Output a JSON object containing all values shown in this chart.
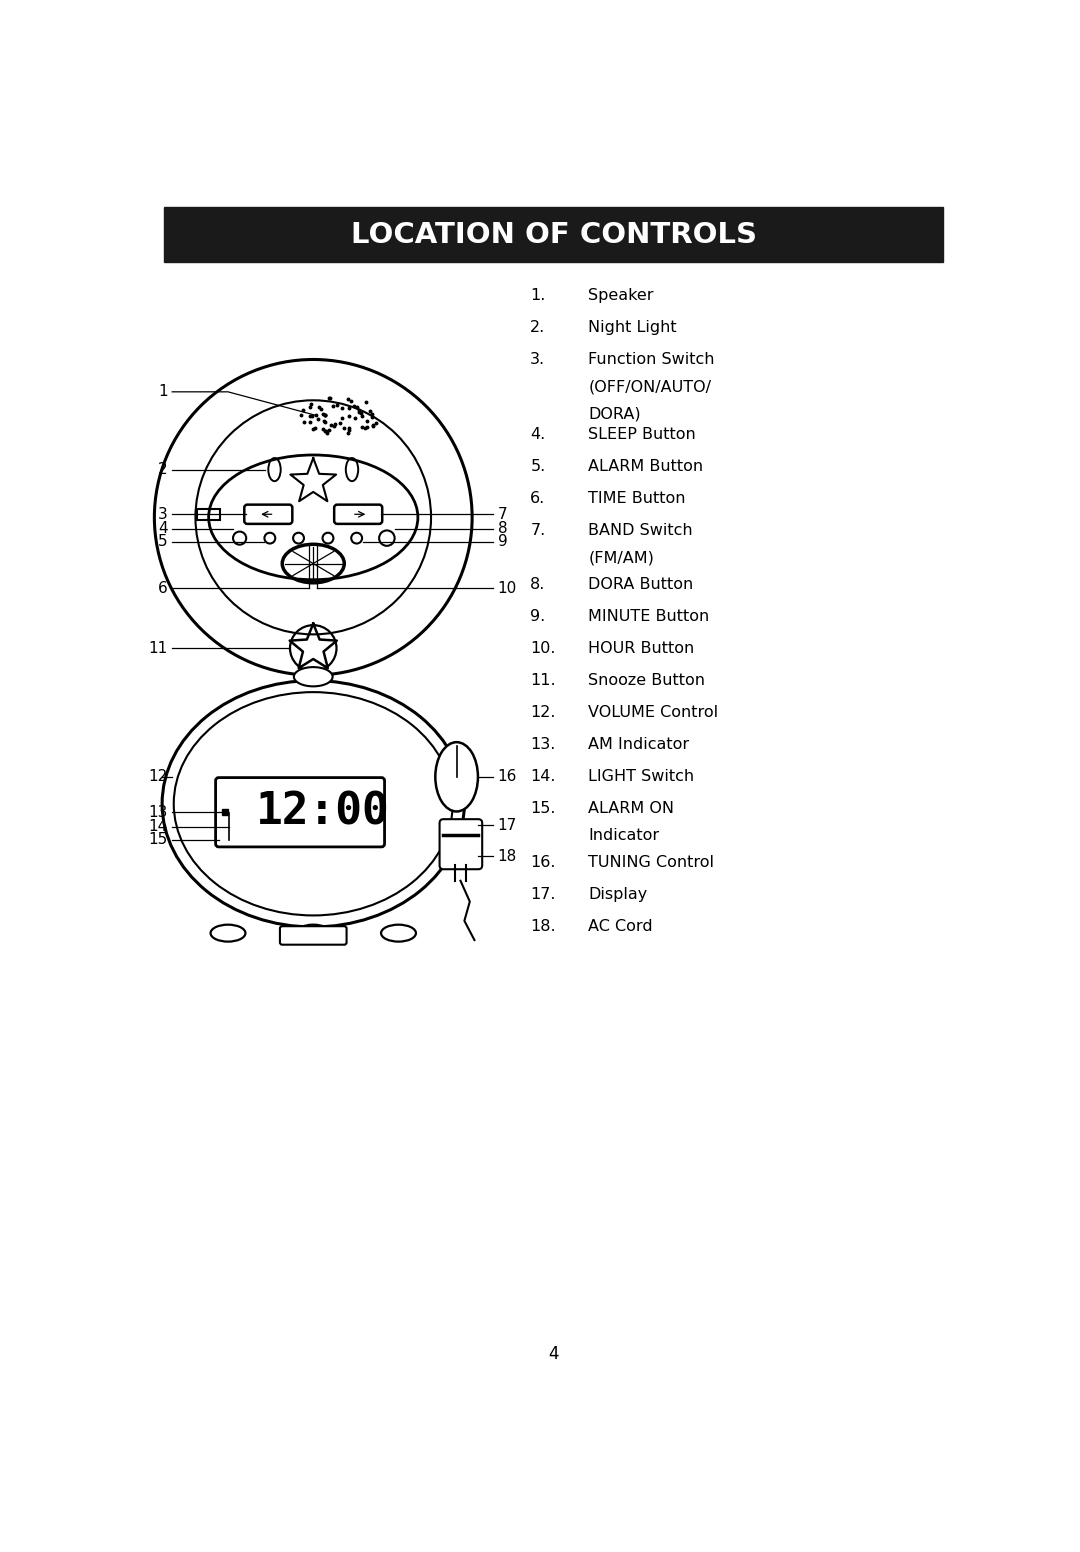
{
  "title": "LOCATION OF CONTROLS",
  "title_bg": "#1a1a1a",
  "title_color": "#ffffff",
  "page_number": "4",
  "items": [
    {
      "num": "1.",
      "text": "Speaker",
      "extra": []
    },
    {
      "num": "2.",
      "text": "Night Light",
      "extra": []
    },
    {
      "num": "3.",
      "text": "Function Switch",
      "extra": [
        "(OFF/ON/AUTO/",
        "DORA)"
      ]
    },
    {
      "num": "4.",
      "text": "SLEEP Button",
      "extra": []
    },
    {
      "num": "5.",
      "text": "ALARM Button",
      "extra": []
    },
    {
      "num": "6.",
      "text": "TIME Button",
      "extra": []
    },
    {
      "num": "7.",
      "text": "BAND Switch",
      "extra": [
        "(FM/AM)"
      ]
    },
    {
      "num": "8.",
      "text": "DORA Button",
      "extra": []
    },
    {
      "num": "9.",
      "text": "MINUTE Button",
      "extra": []
    },
    {
      "num": "10.",
      "text": "HOUR Button",
      "extra": []
    },
    {
      "num": "11.",
      "text": "Snooze Button",
      "extra": []
    },
    {
      "num": "12.",
      "text": "VOLUME Control",
      "extra": []
    },
    {
      "num": "13.",
      "text": "AM Indicator",
      "extra": []
    },
    {
      "num": "14.",
      "text": "LIGHT Switch",
      "extra": []
    },
    {
      "num": "15.",
      "text": "ALARM ON",
      "extra": [
        "Indicator"
      ]
    },
    {
      "num": "16.",
      "text": "TUNING Control",
      "extra": []
    },
    {
      "num": "17.",
      "text": "Display",
      "extra": []
    },
    {
      "num": "18.",
      "text": "AC Cord",
      "extra": []
    }
  ]
}
